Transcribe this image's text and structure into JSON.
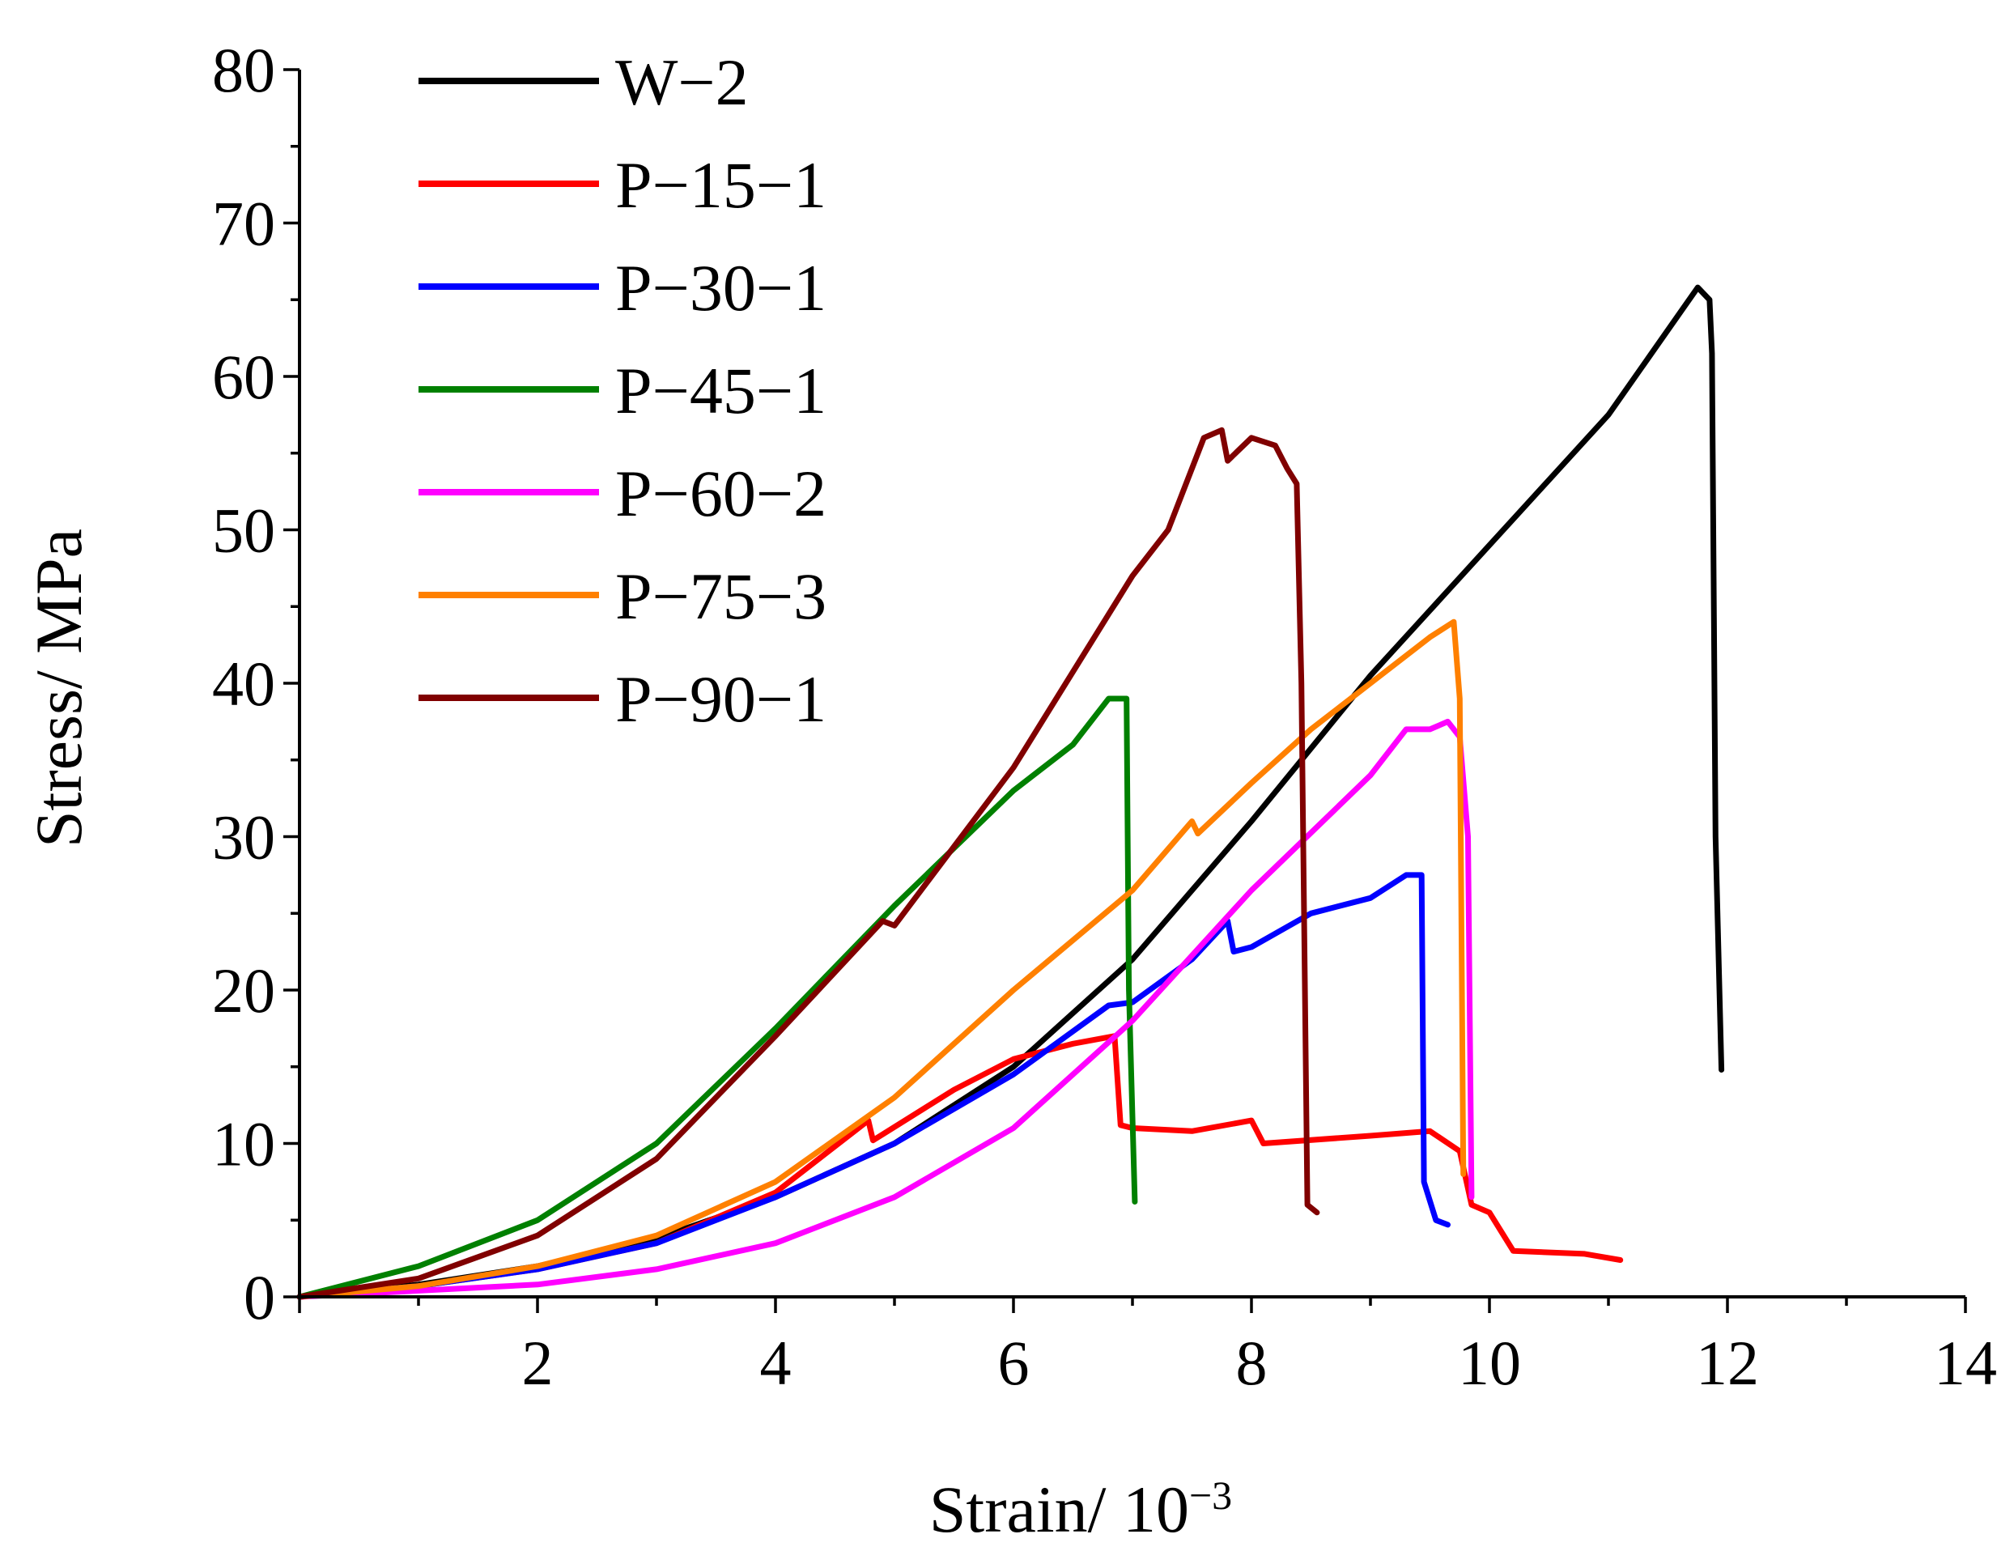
{
  "chart_data": {
    "type": "line",
    "title": "",
    "xlabel": "Strain/ 10",
    "xlabel_exp": "−3",
    "ylabel": "Stress/ MPa",
    "xlim": [
      0,
      14
    ],
    "ylim": [
      0,
      80
    ],
    "xticks": [
      2,
      4,
      6,
      8,
      10,
      12,
      14
    ],
    "yticks": [
      0,
      10,
      20,
      30,
      40,
      50,
      60,
      70,
      80
    ],
    "legend_position": "top-left",
    "series": [
      {
        "name": "W−2",
        "color": "#000000",
        "points": [
          [
            0,
            0
          ],
          [
            1,
            0.8
          ],
          [
            2,
            2
          ],
          [
            3,
            3.8
          ],
          [
            4,
            6.5
          ],
          [
            5,
            10
          ],
          [
            6,
            15
          ],
          [
            7,
            22
          ],
          [
            8,
            31
          ],
          [
            9,
            40.5
          ],
          [
            10,
            49
          ],
          [
            11,
            57.5
          ],
          [
            11.75,
            65.8
          ],
          [
            11.85,
            65
          ],
          [
            11.87,
            61.5
          ],
          [
            11.9,
            30
          ],
          [
            11.95,
            14.8
          ]
        ]
      },
      {
        "name": "P−15−1",
        "color": "#ff0000",
        "points": [
          [
            0,
            0
          ],
          [
            1,
            0.7
          ],
          [
            2,
            1.8
          ],
          [
            3,
            3.5
          ],
          [
            4,
            6.8
          ],
          [
            4.78,
            11.5
          ],
          [
            4.82,
            10.2
          ],
          [
            5.5,
            13.5
          ],
          [
            6,
            15.5
          ],
          [
            6.5,
            16.5
          ],
          [
            6.85,
            17
          ],
          [
            6.9,
            11.2
          ],
          [
            7.0,
            11
          ],
          [
            7.5,
            10.8
          ],
          [
            8.0,
            11.5
          ],
          [
            8.1,
            10
          ],
          [
            9,
            10.5
          ],
          [
            9.5,
            10.8
          ],
          [
            9.75,
            9.5
          ],
          [
            9.85,
            6
          ],
          [
            10,
            5.5
          ],
          [
            10.2,
            3
          ],
          [
            10.8,
            2.8
          ],
          [
            11.1,
            2.4
          ]
        ]
      },
      {
        "name": "P−30−1",
        "color": "#0000ff",
        "points": [
          [
            0,
            0
          ],
          [
            1,
            0.7
          ],
          [
            2,
            1.8
          ],
          [
            3,
            3.5
          ],
          [
            4,
            6.5
          ],
          [
            5,
            10
          ],
          [
            6,
            14.5
          ],
          [
            6.8,
            19
          ],
          [
            7,
            19.2
          ],
          [
            7.5,
            22
          ],
          [
            7.8,
            24.5
          ],
          [
            7.85,
            22.5
          ],
          [
            8.0,
            22.8
          ],
          [
            8.5,
            25
          ],
          [
            9,
            26
          ],
          [
            9.3,
            27.5
          ],
          [
            9.43,
            27.5
          ],
          [
            9.45,
            7.5
          ],
          [
            9.55,
            5
          ],
          [
            9.65,
            4.7
          ]
        ]
      },
      {
        "name": "P−45−1",
        "color": "#008000",
        "points": [
          [
            0,
            0
          ],
          [
            1,
            2
          ],
          [
            2,
            5
          ],
          [
            3,
            10
          ],
          [
            4,
            17.5
          ],
          [
            5,
            25.5
          ],
          [
            6,
            33
          ],
          [
            6.5,
            36
          ],
          [
            6.8,
            39
          ],
          [
            6.95,
            39
          ],
          [
            6.97,
            20
          ],
          [
            7.02,
            6.2
          ]
        ]
      },
      {
        "name": "P−60−2",
        "color": "#ff00ff",
        "points": [
          [
            0,
            0
          ],
          [
            1,
            0.4
          ],
          [
            2,
            0.8
          ],
          [
            3,
            1.8
          ],
          [
            4,
            3.5
          ],
          [
            5,
            6.5
          ],
          [
            6,
            11
          ],
          [
            7,
            18
          ],
          [
            8,
            26.5
          ],
          [
            9,
            34
          ],
          [
            9.3,
            37
          ],
          [
            9.5,
            37
          ],
          [
            9.65,
            37.5
          ],
          [
            9.75,
            36.5
          ],
          [
            9.82,
            30
          ],
          [
            9.85,
            6.5
          ]
        ]
      },
      {
        "name": "P−75−3",
        "color": "#ff8000",
        "points": [
          [
            0,
            0
          ],
          [
            1,
            0.7
          ],
          [
            2,
            2
          ],
          [
            3,
            4
          ],
          [
            4,
            7.5
          ],
          [
            5,
            13
          ],
          [
            6,
            20
          ],
          [
            7,
            26.5
          ],
          [
            7.5,
            31
          ],
          [
            7.55,
            30.2
          ],
          [
            8,
            33.5
          ],
          [
            8.5,
            37
          ],
          [
            9,
            40
          ],
          [
            9.5,
            43
          ],
          [
            9.7,
            44
          ],
          [
            9.75,
            39
          ],
          [
            9.78,
            8
          ]
        ]
      },
      {
        "name": "P−90−1",
        "color": "#800000",
        "points": [
          [
            0,
            0
          ],
          [
            1,
            1.2
          ],
          [
            2,
            4
          ],
          [
            3,
            9
          ],
          [
            4,
            17
          ],
          [
            4.9,
            24.5
          ],
          [
            5,
            24.2
          ],
          [
            6,
            34.5
          ],
          [
            7,
            47
          ],
          [
            7.3,
            50
          ],
          [
            7.6,
            56
          ],
          [
            7.75,
            56.5
          ],
          [
            7.8,
            54.5
          ],
          [
            8.0,
            56
          ],
          [
            8.2,
            55.5
          ],
          [
            8.3,
            54
          ],
          [
            8.38,
            53
          ],
          [
            8.42,
            40
          ],
          [
            8.47,
            6
          ],
          [
            8.55,
            5.5
          ]
        ]
      }
    ]
  }
}
